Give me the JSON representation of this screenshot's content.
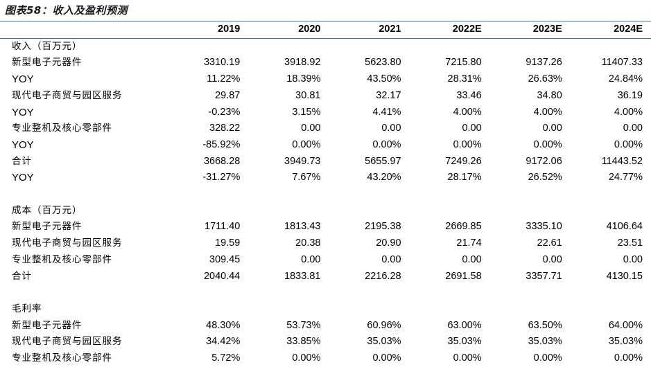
{
  "title": "图表58：收入及盈利预测",
  "columns": [
    "",
    "2019",
    "2020",
    "2021",
    "2022E",
    "2023E",
    "2024E"
  ],
  "rows": [
    {
      "label": "收入（百万元）",
      "values": []
    },
    {
      "label": "新型电子元器件",
      "values": [
        "3310.19",
        "3918.92",
        "5623.80",
        "7215.80",
        "9137.26",
        "11407.33"
      ]
    },
    {
      "label": "YOY",
      "values": [
        "11.22%",
        "18.39%",
        "43.50%",
        "28.31%",
        "26.63%",
        "24.84%"
      ]
    },
    {
      "label": "现代电子商贸与园区服务",
      "values": [
        "29.87",
        "30.81",
        "32.17",
        "33.46",
        "34.80",
        "36.19"
      ]
    },
    {
      "label": "YOY",
      "values": [
        "-0.23%",
        "3.15%",
        "4.41%",
        "4.00%",
        "4.00%",
        "4.00%"
      ]
    },
    {
      "label": "专业整机及核心零部件",
      "values": [
        "328.22",
        "0.00",
        "0.00",
        "0.00",
        "0.00",
        "0.00"
      ]
    },
    {
      "label": "YOY",
      "values": [
        "-85.92%",
        "0.00%",
        "0.00%",
        "0.00%",
        "0.00%",
        "0.00%"
      ]
    },
    {
      "label": "合计",
      "values": [
        "3668.28",
        "3949.73",
        "5655.97",
        "7249.26",
        "9172.06",
        "11443.52"
      ]
    },
    {
      "label": "YOY",
      "values": [
        "-31.27%",
        "7.67%",
        "43.20%",
        "28.17%",
        "26.52%",
        "24.77%"
      ]
    },
    {
      "label": "",
      "values": []
    },
    {
      "label": "成本（百万元）",
      "values": []
    },
    {
      "label": "新型电子元器件",
      "values": [
        "1711.40",
        "1813.43",
        "2195.38",
        "2669.85",
        "3335.10",
        "4106.64"
      ]
    },
    {
      "label": "现代电子商贸与园区服务",
      "values": [
        "19.59",
        "20.38",
        "20.90",
        "21.74",
        "22.61",
        "23.51"
      ]
    },
    {
      "label": "专业整机及核心零部件",
      "values": [
        "309.45",
        "0.00",
        "0.00",
        "0.00",
        "0.00",
        "0.00"
      ]
    },
    {
      "label": "合计",
      "values": [
        "2040.44",
        "1833.81",
        "2216.28",
        "2691.58",
        "3357.71",
        "4130.15"
      ]
    },
    {
      "label": "",
      "values": []
    },
    {
      "label": "毛利率",
      "values": []
    },
    {
      "label": "新型电子元器件",
      "values": [
        "48.30%",
        "53.73%",
        "60.96%",
        "63.00%",
        "63.50%",
        "64.00%"
      ]
    },
    {
      "label": "现代电子商贸与园区服务",
      "values": [
        "34.42%",
        "33.85%",
        "35.03%",
        "35.03%",
        "35.03%",
        "35.03%"
      ]
    },
    {
      "label": "专业整机及核心零部件",
      "values": [
        "5.72%",
        "0.00%",
        "0.00%",
        "0.00%",
        "0.00%",
        "0.00%"
      ]
    }
  ]
}
